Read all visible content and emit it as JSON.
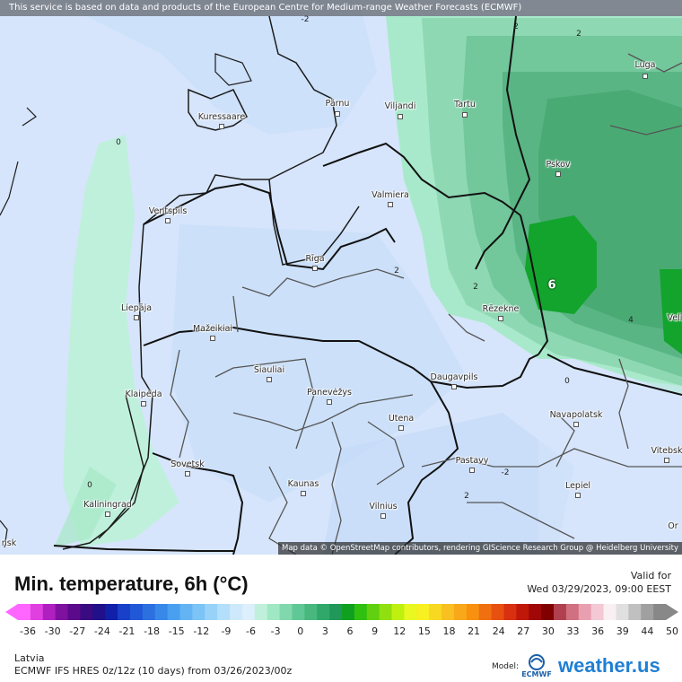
{
  "header": {
    "notice": "This service is based on data and products of the European Centre for Medium-range Weather Forecasts (ECMWF)"
  },
  "map": {
    "attribution": "Map data © OpenStreetMap contributors, rendering GIScience Research Group @ Heidelberg University",
    "cities": [
      {
        "name": "Luga"
      },
      {
        "name": "Kuressaare"
      },
      {
        "name": "Pärnu"
      },
      {
        "name": "Viljandi"
      },
      {
        "name": "Tartu"
      },
      {
        "name": "Pskov"
      },
      {
        "name": "Valmiera"
      },
      {
        "name": "Ventspils"
      },
      {
        "name": "Rīga"
      },
      {
        "name": "Liepāja"
      },
      {
        "name": "Rēzekne"
      },
      {
        "name": "Mažeikiai"
      },
      {
        "name": "Šiauliai"
      },
      {
        "name": "Daugavpils"
      },
      {
        "name": "Klaipėda"
      },
      {
        "name": "Panevėžys"
      },
      {
        "name": "Utena"
      },
      {
        "name": "Navapolatsk"
      },
      {
        "name": "Vitebsk"
      },
      {
        "name": "Sovetsk"
      },
      {
        "name": "Pastavy"
      },
      {
        "name": "Kaunas"
      },
      {
        "name": "Lepiel"
      },
      {
        "name": "Kaliningrad"
      },
      {
        "name": "Vilnius"
      },
      {
        "name": "Velі"
      },
      {
        "name": "Or"
      },
      {
        "name": "nsk"
      }
    ],
    "contour_labels": [
      "2",
      "2",
      "-2",
      "0",
      "2",
      "2",
      "6",
      "4",
      "0",
      "-2",
      "0",
      "2"
    ]
  },
  "legend": {
    "title": "Min. temperature, 6h (°C)",
    "valid_label": "Valid for",
    "valid_date": "Wed 03/29/2023, 09:00 EEST",
    "ticks": [
      "-36",
      "-30",
      "-27",
      "-24",
      "-21",
      "-18",
      "-15",
      "-12",
      "-9",
      "-6",
      "-3",
      "0",
      "3",
      "6",
      "9",
      "12",
      "15",
      "18",
      "21",
      "24",
      "27",
      "30",
      "33",
      "36",
      "39",
      "44",
      "50"
    ],
    "colors": [
      "#ff66ff",
      "#e040e0",
      "#b020c0",
      "#8010a0",
      "#5a0a8a",
      "#3a0a80",
      "#20108a",
      "#1020a8",
      "#1840c8",
      "#2058d8",
      "#2c70e0",
      "#3888ea",
      "#4aa0f0",
      "#62b4f4",
      "#7cc4f6",
      "#98d2f8",
      "#b4dffa",
      "#cde9fb",
      "#dceffc",
      "#c0f0dc",
      "#a0e8c4",
      "#80d8ac",
      "#60c894",
      "#48b87e",
      "#30a86a",
      "#20985a",
      "#10a020",
      "#30c010",
      "#60d010",
      "#90e010",
      "#c0f010",
      "#e8f820",
      "#f8f020",
      "#f8d820",
      "#f8c020",
      "#f8a818",
      "#f89010",
      "#f07010",
      "#e85010",
      "#d83010",
      "#c01808",
      "#a00808",
      "#800000",
      "#b04050",
      "#d07080",
      "#e8a0b0",
      "#f4c8d4",
      "#faf0f4",
      "#e0e0e0",
      "#c0c0c0",
      "#a0a0a0",
      "#888888"
    ]
  },
  "footer": {
    "region": "Latvia",
    "model_line": "ECMWF IFS HRES 0z/12z (10 days) from  03/26/2023/00z",
    "model_label": "Model:",
    "ecmwf_text": "ECMWF",
    "brand_main": "weather.",
    "brand_tld": "us"
  }
}
